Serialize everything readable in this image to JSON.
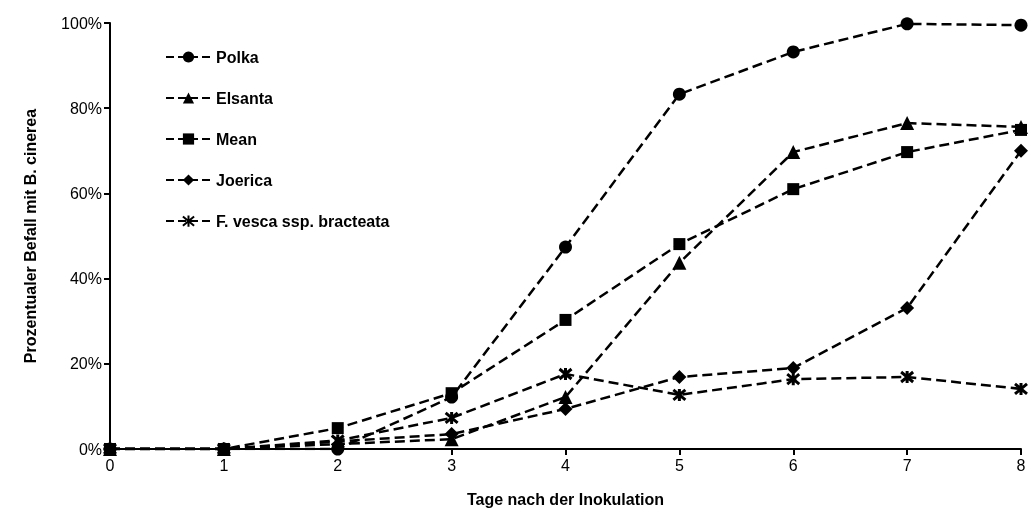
{
  "chart_data": {
    "type": "line",
    "xlabel": "Tage nach der Inokulation",
    "ylabel": "Prozentualer Befall mit B. cinerea",
    "x": [
      0,
      1,
      2,
      3,
      4,
      5,
      6,
      7,
      8
    ],
    "series": [
      {
        "name": "Polka",
        "color": "#000000",
        "marker": "circle",
        "values": [
          0,
          0,
          0,
          12.2,
          47.4,
          83.3,
          93.2,
          99.8,
          99.5
        ]
      },
      {
        "name": "Elsanta",
        "color": "#000000",
        "marker": "triangle",
        "values": [
          0,
          0,
          null,
          2.3,
          12.2,
          43.7,
          69.7,
          76.5,
          75.6
        ]
      },
      {
        "name": "Mean",
        "color": "#000000",
        "marker": "square",
        "values": [
          0,
          0,
          4.9,
          13.1,
          30.3,
          48.1,
          61,
          69.7,
          74.9
        ]
      },
      {
        "name": "Joerica",
        "color": "#000000",
        "marker": "diamond",
        "values": [
          0,
          0,
          null,
          3.5,
          9.4,
          16.9,
          19,
          33.1,
          70
        ]
      },
      {
        "name": "F. vesca ssp. bracteata",
        "color": "#000000",
        "marker": "cross",
        "values": [
          0,
          0,
          2,
          7.3,
          17.6,
          12.7,
          16.4,
          16.9,
          14.1
        ]
      }
    ],
    "xlim": [
      0,
      8
    ],
    "xticks": [
      0,
      1,
      2,
      3,
      4,
      5,
      6,
      7,
      8
    ],
    "ylim": [
      0,
      100
    ],
    "yticks": [
      {
        "value": 0,
        "label": "0%"
      },
      {
        "value": 20,
        "label": "20%"
      },
      {
        "value": 40,
        "label": "40%"
      },
      {
        "value": 60,
        "label": "60%"
      },
      {
        "value": 80,
        "label": "80%"
      },
      {
        "value": 100,
        "label": "100%"
      }
    ],
    "grid": false,
    "legend": "top left",
    "line_style": "dashed"
  }
}
